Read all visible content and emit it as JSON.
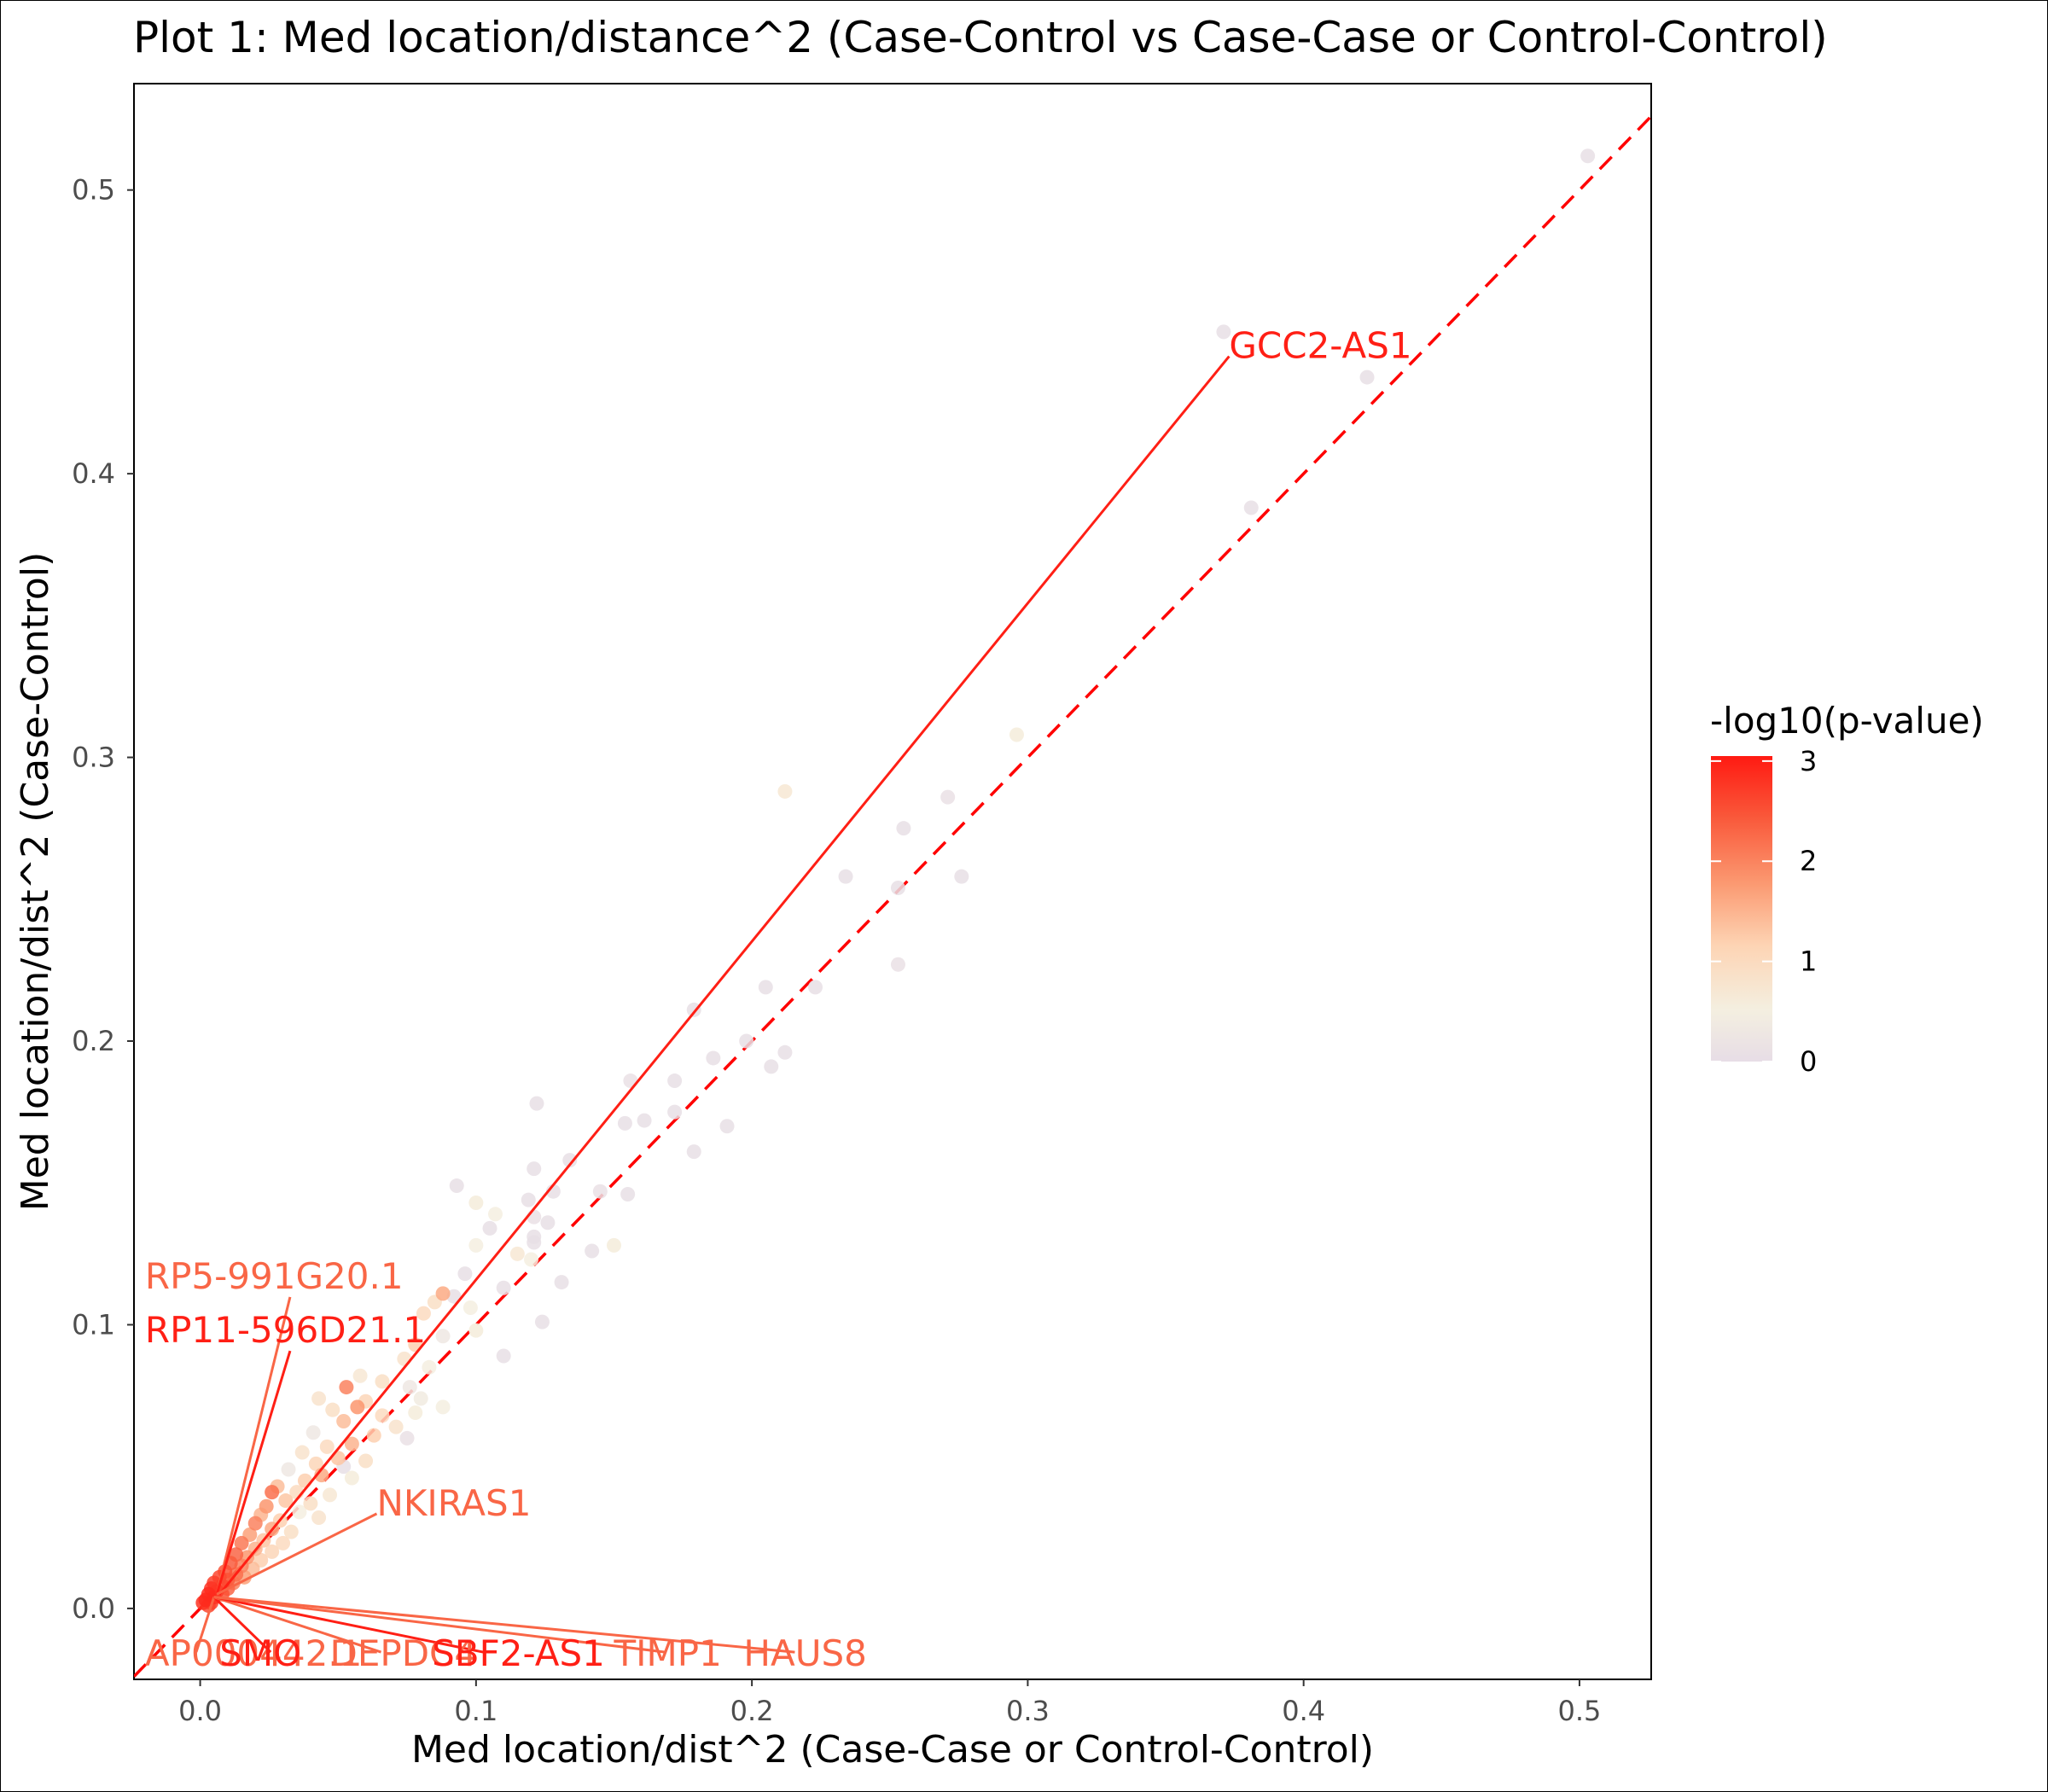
{
  "chart_data": {
    "type": "scatter",
    "title": "Plot 1: Med location/distance^2 (Case-Control vs Case-Case or Control-Control)",
    "xlabel": "Med location/dist^2 (Case-Case or Control-Control)",
    "ylabel": "Med location/dist^2 (Case-Control)",
    "xlim": [
      -0.024,
      0.526
    ],
    "ylim": [
      -0.025,
      0.5375
    ],
    "x_ticks": [
      "0.0",
      "0.1",
      "0.2",
      "0.3",
      "0.4",
      "0.5"
    ],
    "y_ticks": [
      "0.0",
      "0.1",
      "0.2",
      "0.3",
      "0.4",
      "0.5"
    ],
    "x_tick_values": [
      0.0,
      0.1,
      0.2,
      0.3,
      0.4,
      0.5
    ],
    "y_tick_values": [
      0.0,
      0.1,
      0.2,
      0.3,
      0.4,
      0.5
    ],
    "grid": false,
    "reference_line": {
      "slope": 1,
      "intercept": 0,
      "style": "dashed",
      "color": "#ff0000"
    },
    "legend": {
      "title": "-log10(p-value)",
      "position": "right",
      "ticks": [
        "0",
        "1",
        "2",
        "3"
      ],
      "tick_values": [
        0,
        1,
        2,
        3
      ],
      "range": [
        0,
        3.05
      ],
      "colors": [
        "#e7dde6",
        "#f4efe0",
        "#fdd4b4",
        "#fb9a72",
        "#f9583a",
        "#ff1a12"
      ]
    },
    "points": [
      {
        "x": 0.503,
        "y": 0.512,
        "p": 0.05
      },
      {
        "x": 0.371,
        "y": 0.45,
        "p": 0.05
      },
      {
        "x": 0.423,
        "y": 0.434,
        "p": 0.05
      },
      {
        "x": 0.381,
        "y": 0.388,
        "p": 0.05
      },
      {
        "x": 0.296,
        "y": 0.308,
        "p": 0.6
      },
      {
        "x": 0.212,
        "y": 0.288,
        "p": 0.7
      },
      {
        "x": 0.271,
        "y": 0.286,
        "p": 0.1
      },
      {
        "x": 0.255,
        "y": 0.275,
        "p": 0.05
      },
      {
        "x": 0.234,
        "y": 0.258,
        "p": 0.05
      },
      {
        "x": 0.276,
        "y": 0.258,
        "p": 0.05
      },
      {
        "x": 0.253,
        "y": 0.254,
        "p": 0.05
      },
      {
        "x": 0.253,
        "y": 0.227,
        "p": 0.1
      },
      {
        "x": 0.205,
        "y": 0.219,
        "p": 0.05
      },
      {
        "x": 0.223,
        "y": 0.219,
        "p": 0.05
      },
      {
        "x": 0.179,
        "y": 0.211,
        "p": 0.05
      },
      {
        "x": 0.198,
        "y": 0.2,
        "p": 0.05
      },
      {
        "x": 0.212,
        "y": 0.196,
        "p": 0.05
      },
      {
        "x": 0.186,
        "y": 0.194,
        "p": 0.05
      },
      {
        "x": 0.207,
        "y": 0.191,
        "p": 0.05
      },
      {
        "x": 0.172,
        "y": 0.186,
        "p": 0.05
      },
      {
        "x": 0.156,
        "y": 0.186,
        "p": 0.1
      },
      {
        "x": 0.122,
        "y": 0.178,
        "p": 0.05
      },
      {
        "x": 0.172,
        "y": 0.175,
        "p": 0.05
      },
      {
        "x": 0.161,
        "y": 0.172,
        "p": 0.05
      },
      {
        "x": 0.154,
        "y": 0.171,
        "p": 0.05
      },
      {
        "x": 0.191,
        "y": 0.17,
        "p": 0.05
      },
      {
        "x": 0.179,
        "y": 0.161,
        "p": 0.05
      },
      {
        "x": 0.134,
        "y": 0.158,
        "p": 0.05
      },
      {
        "x": 0.121,
        "y": 0.155,
        "p": 0.05
      },
      {
        "x": 0.093,
        "y": 0.149,
        "p": 0.05
      },
      {
        "x": 0.145,
        "y": 0.147,
        "p": 0.1
      },
      {
        "x": 0.128,
        "y": 0.147,
        "p": 0.05
      },
      {
        "x": 0.155,
        "y": 0.146,
        "p": 0.05
      },
      {
        "x": 0.119,
        "y": 0.144,
        "p": 0.05
      },
      {
        "x": 0.1,
        "y": 0.143,
        "p": 0.6
      },
      {
        "x": 0.107,
        "y": 0.139,
        "p": 0.5
      },
      {
        "x": 0.121,
        "y": 0.138,
        "p": 0.1
      },
      {
        "x": 0.126,
        "y": 0.136,
        "p": 0.05
      },
      {
        "x": 0.105,
        "y": 0.134,
        "p": 0.05
      },
      {
        "x": 0.121,
        "y": 0.131,
        "p": 0.05
      },
      {
        "x": 0.121,
        "y": 0.129,
        "p": 0.05
      },
      {
        "x": 0.1,
        "y": 0.128,
        "p": 0.5
      },
      {
        "x": 0.15,
        "y": 0.128,
        "p": 0.6
      },
      {
        "x": 0.142,
        "y": 0.126,
        "p": 0.05
      },
      {
        "x": 0.115,
        "y": 0.125,
        "p": 0.7
      },
      {
        "x": 0.096,
        "y": 0.118,
        "p": 0.05
      },
      {
        "x": 0.12,
        "y": 0.123,
        "p": 0.5
      },
      {
        "x": 0.131,
        "y": 0.115,
        "p": 0.05
      },
      {
        "x": 0.11,
        "y": 0.113,
        "p": 0.05
      },
      {
        "x": 0.088,
        "y": 0.111,
        "p": 1.6
      },
      {
        "x": 0.085,
        "y": 0.108,
        "p": 0.9
      },
      {
        "x": 0.092,
        "y": 0.11,
        "p": 0.05
      },
      {
        "x": 0.081,
        "y": 0.104,
        "p": 1.0
      },
      {
        "x": 0.098,
        "y": 0.106,
        "p": 0.5
      },
      {
        "x": 0.124,
        "y": 0.101,
        "p": 0.05
      },
      {
        "x": 0.1,
        "y": 0.098,
        "p": 0.6
      },
      {
        "x": 0.088,
        "y": 0.096,
        "p": 0.3
      },
      {
        "x": 0.078,
        "y": 0.093,
        "p": 1.2
      },
      {
        "x": 0.11,
        "y": 0.089,
        "p": 0.05
      },
      {
        "x": 0.074,
        "y": 0.088,
        "p": 0.8
      },
      {
        "x": 0.083,
        "y": 0.085,
        "p": 0.5
      },
      {
        "x": 0.058,
        "y": 0.082,
        "p": 0.7
      },
      {
        "x": 0.066,
        "y": 0.08,
        "p": 0.9
      },
      {
        "x": 0.053,
        "y": 0.078,
        "p": 2.0
      },
      {
        "x": 0.076,
        "y": 0.078,
        "p": 0.3
      },
      {
        "x": 0.08,
        "y": 0.074,
        "p": 0.4
      },
      {
        "x": 0.043,
        "y": 0.074,
        "p": 0.8
      },
      {
        "x": 0.06,
        "y": 0.073,
        "p": 1.1
      },
      {
        "x": 0.057,
        "y": 0.071,
        "p": 1.8
      },
      {
        "x": 0.088,
        "y": 0.071,
        "p": 0.5
      },
      {
        "x": 0.048,
        "y": 0.07,
        "p": 0.9
      },
      {
        "x": 0.078,
        "y": 0.069,
        "p": 0.6
      },
      {
        "x": 0.066,
        "y": 0.068,
        "p": 1.0
      },
      {
        "x": 0.052,
        "y": 0.066,
        "p": 1.4
      },
      {
        "x": 0.071,
        "y": 0.064,
        "p": 0.8
      },
      {
        "x": 0.041,
        "y": 0.062,
        "p": 0.3
      },
      {
        "x": 0.063,
        "y": 0.061,
        "p": 1.2
      },
      {
        "x": 0.055,
        "y": 0.058,
        "p": 1.5
      },
      {
        "x": 0.075,
        "y": 0.06,
        "p": 0.1
      },
      {
        "x": 0.046,
        "y": 0.057,
        "p": 1.0
      },
      {
        "x": 0.037,
        "y": 0.055,
        "p": 0.8
      },
      {
        "x": 0.05,
        "y": 0.053,
        "p": 1.3
      },
      {
        "x": 0.06,
        "y": 0.052,
        "p": 0.9
      },
      {
        "x": 0.042,
        "y": 0.051,
        "p": 1.1
      },
      {
        "x": 0.052,
        "y": 0.05,
        "p": 0.05
      },
      {
        "x": 0.032,
        "y": 0.049,
        "p": 0.3
      },
      {
        "x": 0.044,
        "y": 0.047,
        "p": 1.6
      },
      {
        "x": 0.038,
        "y": 0.045,
        "p": 1.2
      },
      {
        "x": 0.055,
        "y": 0.046,
        "p": 0.6
      },
      {
        "x": 0.028,
        "y": 0.043,
        "p": 1.4
      },
      {
        "x": 0.035,
        "y": 0.041,
        "p": 1.0
      },
      {
        "x": 0.026,
        "y": 0.041,
        "p": 2.2
      },
      {
        "x": 0.047,
        "y": 0.04,
        "p": 0.7
      },
      {
        "x": 0.031,
        "y": 0.038,
        "p": 1.3
      },
      {
        "x": 0.04,
        "y": 0.037,
        "p": 0.9
      },
      {
        "x": 0.024,
        "y": 0.036,
        "p": 1.8
      },
      {
        "x": 0.036,
        "y": 0.034,
        "p": 0.5
      },
      {
        "x": 0.022,
        "y": 0.033,
        "p": 1.5
      },
      {
        "x": 0.029,
        "y": 0.031,
        "p": 1.2
      },
      {
        "x": 0.043,
        "y": 0.032,
        "p": 0.8
      },
      {
        "x": 0.02,
        "y": 0.03,
        "p": 2.0
      },
      {
        "x": 0.026,
        "y": 0.028,
        "p": 1.6
      },
      {
        "x": 0.033,
        "y": 0.027,
        "p": 0.9
      },
      {
        "x": 0.018,
        "y": 0.026,
        "p": 1.7
      },
      {
        "x": 0.023,
        "y": 0.024,
        "p": 1.3
      },
      {
        "x": 0.03,
        "y": 0.023,
        "p": 1.0
      },
      {
        "x": 0.015,
        "y": 0.023,
        "p": 2.1
      },
      {
        "x": 0.02,
        "y": 0.021,
        "p": 1.5
      },
      {
        "x": 0.026,
        "y": 0.02,
        "p": 1.1
      },
      {
        "x": 0.013,
        "y": 0.019,
        "p": 2.3
      },
      {
        "x": 0.017,
        "y": 0.018,
        "p": 1.8
      },
      {
        "x": 0.022,
        "y": 0.017,
        "p": 1.2
      },
      {
        "x": 0.011,
        "y": 0.016,
        "p": 2.4
      },
      {
        "x": 0.015,
        "y": 0.015,
        "p": 2.0
      },
      {
        "x": 0.019,
        "y": 0.014,
        "p": 1.4
      },
      {
        "x": 0.009,
        "y": 0.013,
        "p": 2.5
      },
      {
        "x": 0.013,
        "y": 0.012,
        "p": 2.2
      },
      {
        "x": 0.016,
        "y": 0.011,
        "p": 1.7
      },
      {
        "x": 0.007,
        "y": 0.011,
        "p": 2.6
      },
      {
        "x": 0.01,
        "y": 0.01,
        "p": 2.4
      },
      {
        "x": 0.012,
        "y": 0.009,
        "p": 2.0
      },
      {
        "x": 0.005,
        "y": 0.009,
        "p": 2.7
      },
      {
        "x": 0.008,
        "y": 0.008,
        "p": 2.6
      },
      {
        "x": 0.01,
        "y": 0.007,
        "p": 2.3
      },
      {
        "x": 0.004,
        "y": 0.007,
        "p": 2.8
      },
      {
        "x": 0.006,
        "y": 0.006,
        "p": 2.7
      },
      {
        "x": 0.008,
        "y": 0.005,
        "p": 2.5
      },
      {
        "x": 0.003,
        "y": 0.005,
        "p": 2.9
      },
      {
        "x": 0.005,
        "y": 0.004,
        "p": 2.8
      },
      {
        "x": 0.002,
        "y": 0.003,
        "p": 2.9
      },
      {
        "x": 0.004,
        "y": 0.002,
        "p": 2.7
      },
      {
        "x": 0.001,
        "y": 0.002,
        "p": 2.8
      },
      {
        "x": 0.003,
        "y": 0.001,
        "p": 2.6
      }
    ],
    "labels": [
      {
        "text": "GCC2-AS1",
        "x": 0.373,
        "y": 0.445,
        "px": 0.007,
        "py": 0.005,
        "p": 3.0
      },
      {
        "text": "RP5-991G20.1",
        "x": -0.02,
        "y": 0.117,
        "px": 0.006,
        "py": 0.005,
        "p": 2.3
      },
      {
        "text": "RP11-596D21.1",
        "x": -0.02,
        "y": 0.098,
        "px": 0.006,
        "py": 0.005,
        "p": 3.0
      },
      {
        "text": "NKIRAS1",
        "x": 0.064,
        "y": 0.037,
        "px": 0.006,
        "py": 0.005,
        "p": 2.3
      },
      {
        "text": "AP000442.1",
        "x": -0.02,
        "y": -0.016,
        "px": 0.005,
        "py": 0.004,
        "p": 2.3
      },
      {
        "text": "SMO",
        "x": 0.007,
        "y": -0.016,
        "px": 0.005,
        "py": 0.004,
        "p": 3.0
      },
      {
        "text": "DEPDC4",
        "x": 0.047,
        "y": -0.016,
        "px": 0.005,
        "py": 0.004,
        "p": 2.3
      },
      {
        "text": "SBF2-AS1",
        "x": 0.084,
        "y": -0.016,
        "px": 0.005,
        "py": 0.004,
        "p": 3.0
      },
      {
        "text": "TIMP1",
        "x": 0.15,
        "y": -0.016,
        "px": 0.005,
        "py": 0.004,
        "p": 2.3
      },
      {
        "text": "HAUS8",
        "x": 0.197,
        "y": -0.016,
        "px": 0.005,
        "py": 0.004,
        "p": 2.3
      }
    ]
  }
}
